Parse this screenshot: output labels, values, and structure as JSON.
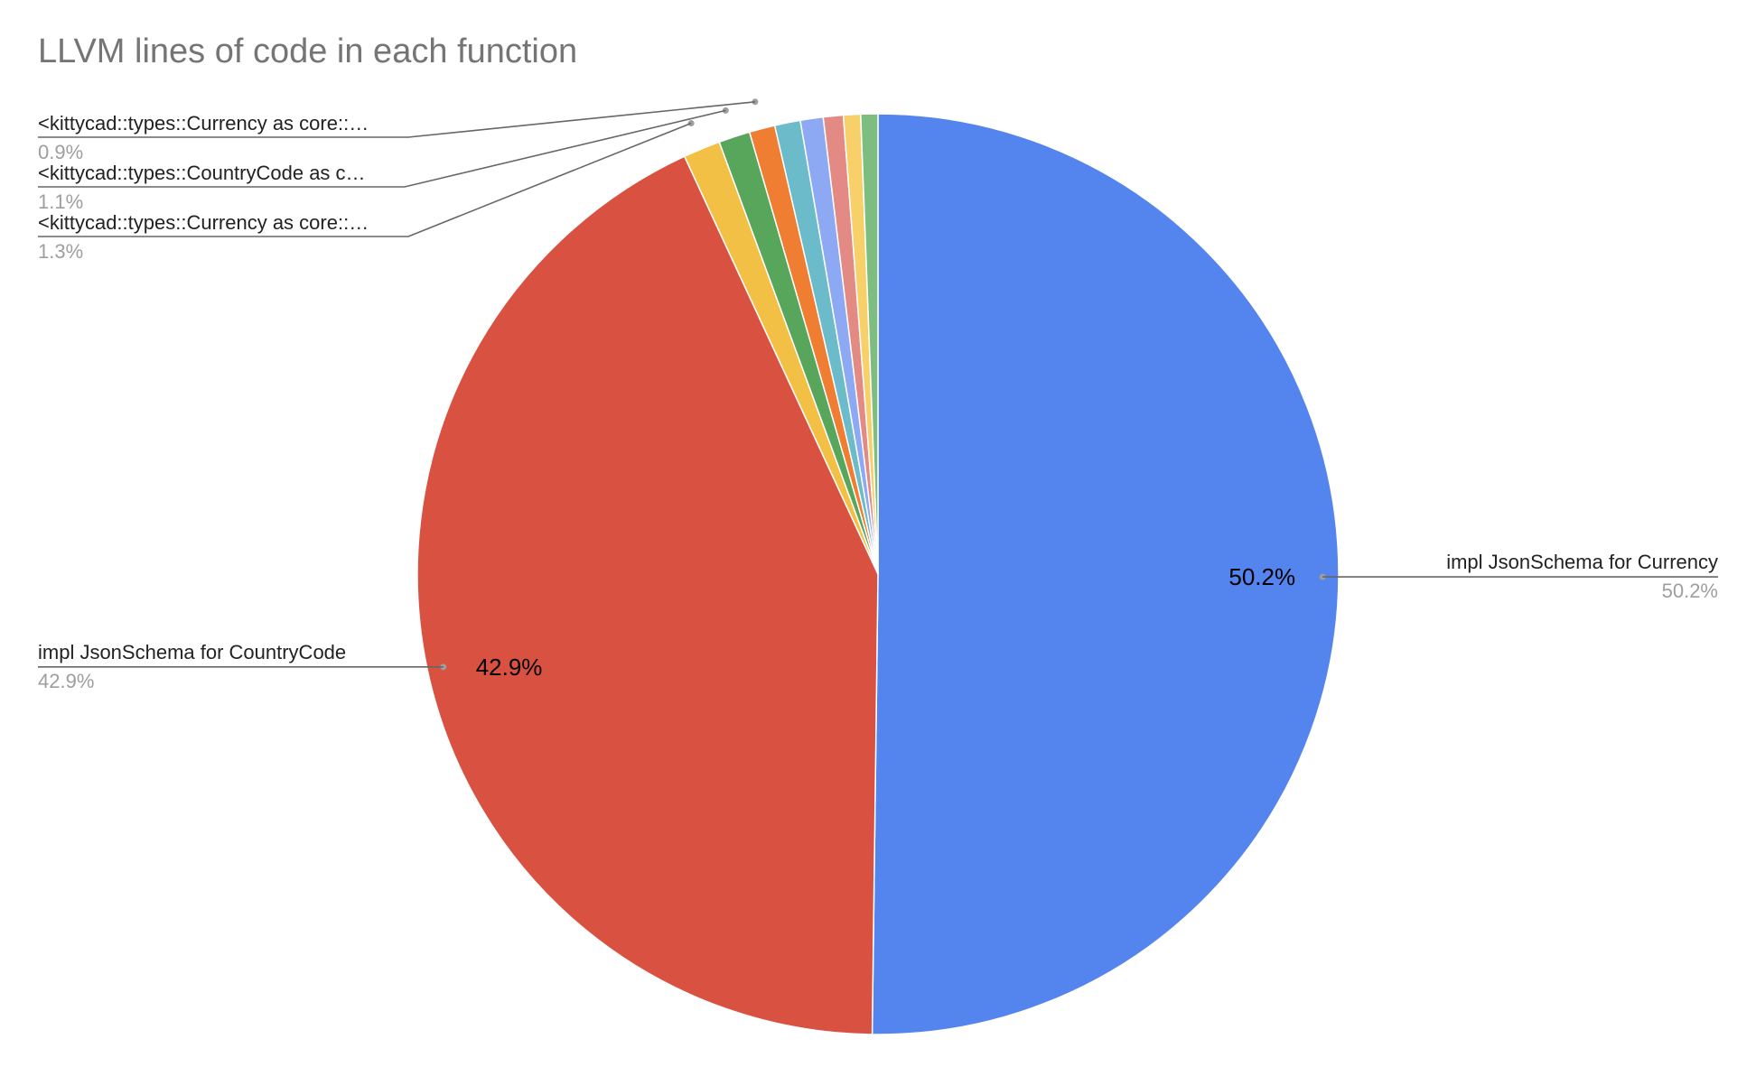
{
  "chart_data": {
    "type": "pie",
    "title": "LLVM lines of code in each function",
    "slices": [
      {
        "label": "impl JsonSchema for Currency",
        "value": 50.2,
        "color": "#5484ED",
        "display_pct": "50.2%",
        "inside_label": "50.2%"
      },
      {
        "label": "impl JsonSchema for CountryCode",
        "value": 42.9,
        "color": "#D95140",
        "display_pct": "42.9%",
        "inside_label": "42.9%"
      },
      {
        "label": "<kittycad::types::Currency as core::…",
        "value": 1.3,
        "color": "#F2C044",
        "display_pct": "1.3%"
      },
      {
        "label": "<kittycad::types::CountryCode as c…",
        "value": 1.1,
        "color": "#58A55C",
        "display_pct": "1.1%"
      },
      {
        "label": "<kittycad::types::Currency as core::…",
        "value": 0.9,
        "color": "#EF7D32",
        "display_pct": "0.9%"
      },
      {
        "value": 0.9,
        "color": "#6BBBCB"
      },
      {
        "value": 0.8,
        "color": "#8EA9F3"
      },
      {
        "value": 0.7,
        "color": "#E48A85"
      },
      {
        "value": 0.6,
        "color": "#F7D06A"
      },
      {
        "value": 0.6,
        "color": "#7DBE80"
      }
    ]
  }
}
